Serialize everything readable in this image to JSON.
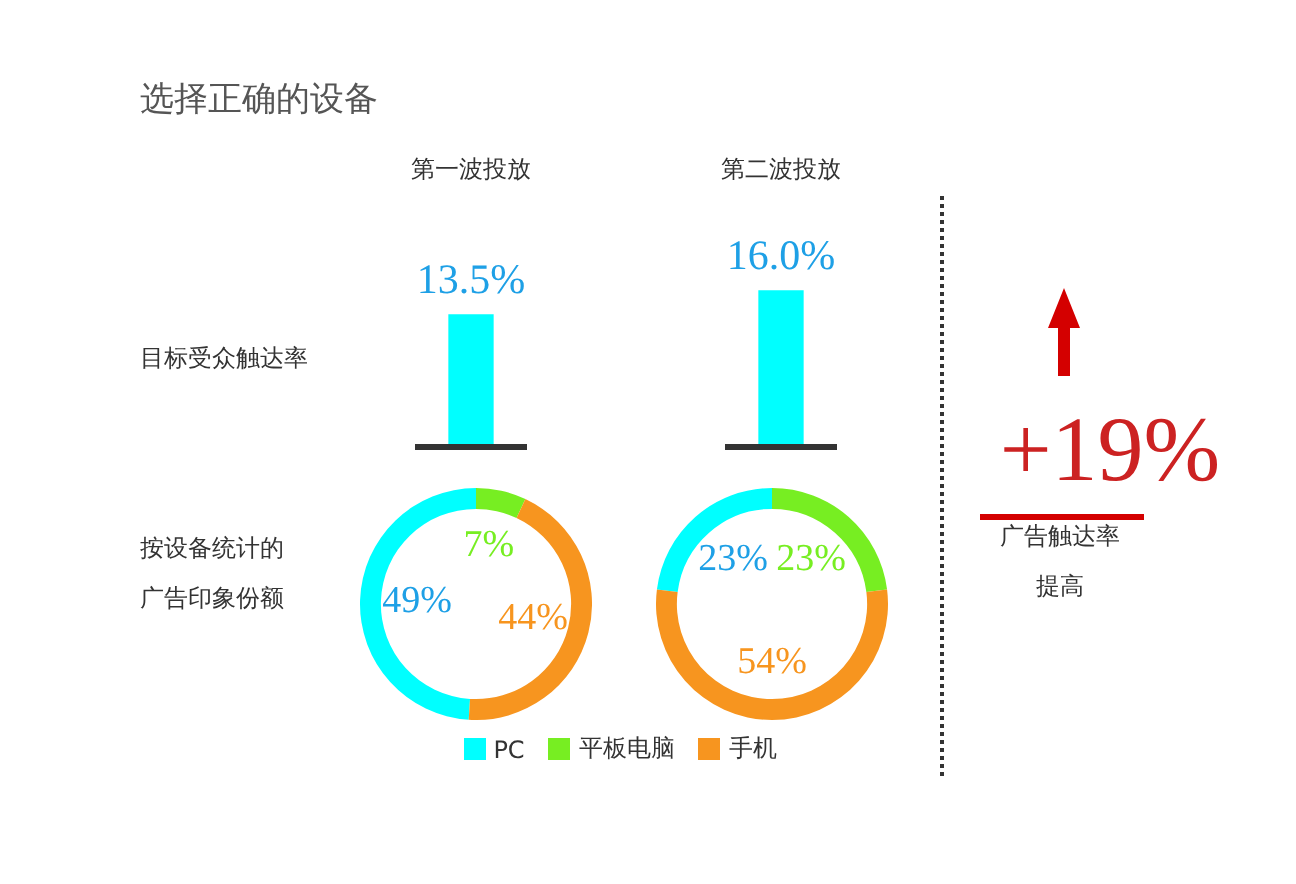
{
  "chart_data": [
    {
      "type": "bar",
      "title": "选择正确的设备",
      "ylabel": "目标受众触达率",
      "categories": [
        "第一波投放",
        "第二波投放"
      ],
      "values": [
        13.5,
        16.0
      ],
      "value_labels": [
        "13.5%",
        "16.0%"
      ],
      "color": "#00ffff",
      "legend": false
    },
    {
      "type": "donut",
      "annotations": [
        "按设备统计的",
        "广告印象份额"
      ],
      "categories": [
        "PC",
        "平板电脑",
        "手机"
      ],
      "colors": [
        "#00ffff",
        "#77ee22",
        "#f7951f"
      ],
      "legend": "bottom",
      "series": [
        {
          "values": [
            49,
            7,
            44
          ],
          "value_labels": [
            "49%",
            "7%",
            "44%"
          ]
        },
        {
          "values": [
            23,
            23,
            54
          ],
          "value_labels": [
            "23%",
            "23%",
            "54%"
          ]
        }
      ]
    },
    {
      "type": "other",
      "annotations": [
        "+19%",
        "广告触达率",
        "提高"
      ]
    }
  ]
}
